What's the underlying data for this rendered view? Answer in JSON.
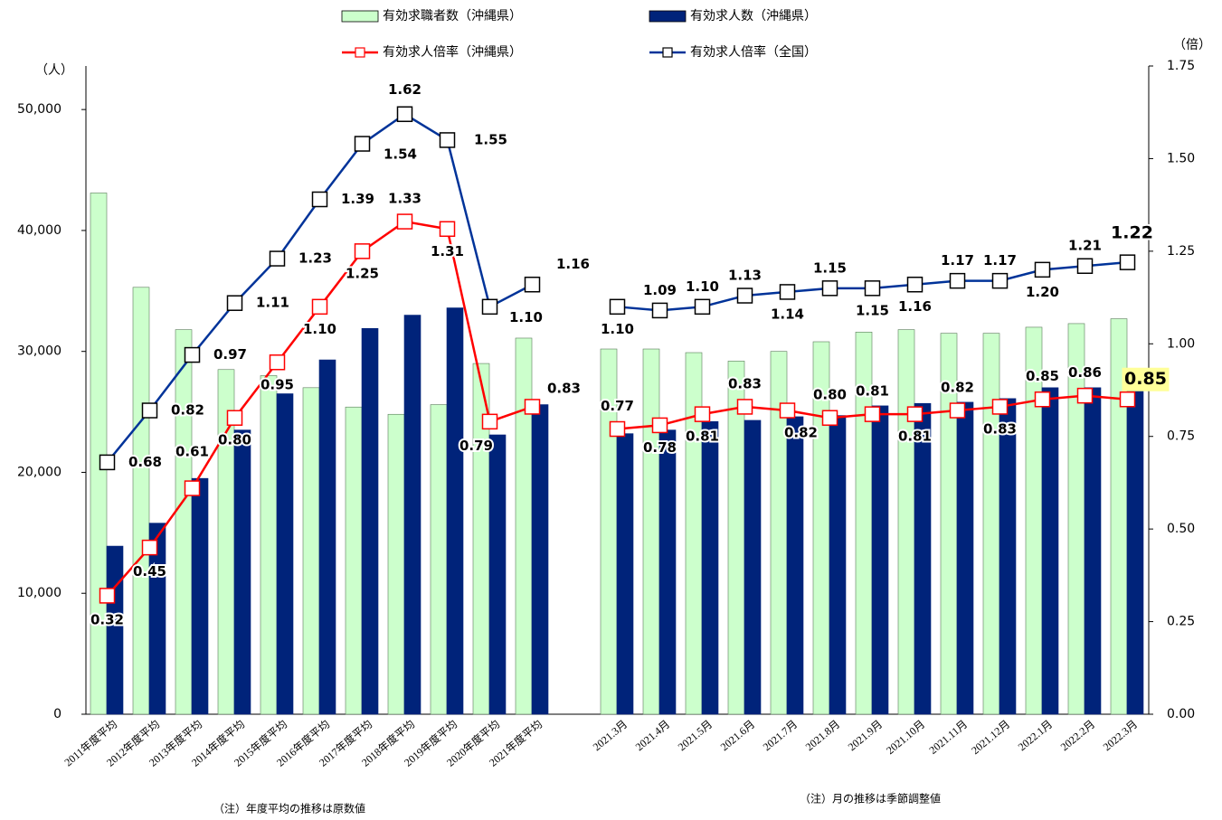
{
  "chart_data": {
    "type": "bar",
    "categories": [
      "2011年度平均",
      "2012年度平均",
      "2013年度平均",
      "2014年度平均",
      "2015年度平均",
      "2016年度平均",
      "2017年度平均",
      "2018年度平均",
      "2019年度平均",
      "2020年度平均",
      "2021年度平均",
      null,
      "2021.3月",
      "2021.4月",
      "2021.5月",
      "2021.6月",
      "2021.7月",
      "2021.8月",
      "2021.9月",
      "2021.10月",
      "2021.11月",
      "2021.12月",
      "2022.1月",
      "2022.2月",
      "2022.3月"
    ],
    "series": [
      {
        "name": "有効求職者数（沖縄県）",
        "type": "bar",
        "color": "#ccffcc",
        "values": [
          43100,
          35300,
          31800,
          28500,
          28000,
          27000,
          25400,
          24800,
          25600,
          29000,
          31100,
          null,
          30200,
          30200,
          29900,
          29200,
          30000,
          30800,
          31600,
          31800,
          31500,
          31500,
          32000,
          32300,
          32700
        ]
      },
      {
        "name": "有効求人数（沖縄県）",
        "type": "bar",
        "color": "#00237a",
        "values": [
          13900,
          15800,
          19500,
          23500,
          26500,
          29300,
          31900,
          33000,
          33600,
          23100,
          25600,
          null,
          23200,
          23500,
          24200,
          24300,
          24600,
          24700,
          25500,
          25700,
          25800,
          26100,
          27000,
          27000,
          27800
        ]
      },
      {
        "name": "有効求人倍率（沖縄県）",
        "type": "line",
        "axis": "y2",
        "color": "#ff0000",
        "values": [
          0.32,
          0.45,
          0.61,
          0.8,
          0.95,
          1.1,
          1.25,
          1.33,
          1.31,
          0.79,
          0.83,
          null,
          0.77,
          0.78,
          0.81,
          0.83,
          0.82,
          0.8,
          0.81,
          0.81,
          0.82,
          0.83,
          0.85,
          0.86,
          0.85
        ],
        "value_labels": [
          "0.32",
          "0.45",
          "0.61",
          "0.80",
          "0.95",
          "1.10",
          "1.25",
          "1.33",
          "1.31",
          "0.79",
          "0.83",
          null,
          "0.77",
          "0.78",
          "0.81",
          "0.83",
          "0.82",
          "0.80",
          "0.81",
          "0.81",
          "0.82",
          "0.83",
          "0.85",
          "0.86",
          "0.85"
        ]
      },
      {
        "name": "有効求人倍率（全国）",
        "type": "line",
        "axis": "y2",
        "color": "#003399",
        "values": [
          0.68,
          0.82,
          0.97,
          1.11,
          1.23,
          1.39,
          1.54,
          1.62,
          1.55,
          1.1,
          1.16,
          null,
          1.1,
          1.09,
          1.1,
          1.13,
          1.14,
          1.15,
          1.15,
          1.16,
          1.17,
          1.17,
          1.2,
          1.21,
          1.22
        ],
        "value_labels": [
          "0.68",
          "0.82",
          "0.97",
          "1.11",
          "1.23",
          "1.39",
          "1.54",
          "1.62",
          "1.55",
          "1.10",
          "1.16",
          null,
          "1.10",
          "1.09",
          "1.10",
          "1.13",
          "1.14",
          "1.15",
          "1.15",
          "1.16",
          "1.17",
          "1.17",
          "1.20",
          "1.21",
          "1.22"
        ]
      }
    ],
    "ylabel": "（人）",
    "y2label": "（倍）",
    "ylim": [
      0,
      53600
    ],
    "yticks": [
      0,
      {
        "value": 10000,
        "label": "10,000"
      },
      {
        "value": 20000,
        "label": "20,000"
      },
      {
        "value": 30000,
        "label": "30,000"
      },
      {
        "value": 40000,
        "label": "40,000"
      },
      {
        "value": 50000,
        "label": "50,000"
      }
    ],
    "y2lim": [
      0,
      1.75
    ],
    "y2ticks": [
      {
        "value": 0,
        "label": "0.00"
      },
      {
        "value": 0.25,
        "label": "0.25"
      },
      {
        "value": 0.5,
        "label": "0.50"
      },
      {
        "value": 0.75,
        "label": "0.75"
      },
      {
        "value": 1,
        "label": "1.00"
      },
      {
        "value": 1.25,
        "label": "1.25"
      },
      {
        "value": 1.5,
        "label": "1.50"
      },
      {
        "value": 1.75,
        "label": "1.75"
      }
    ],
    "annotations": [
      "（注）年度平均の推移は原数値",
      "（注）月の推移は季節調整値"
    ],
    "grid": false
  }
}
